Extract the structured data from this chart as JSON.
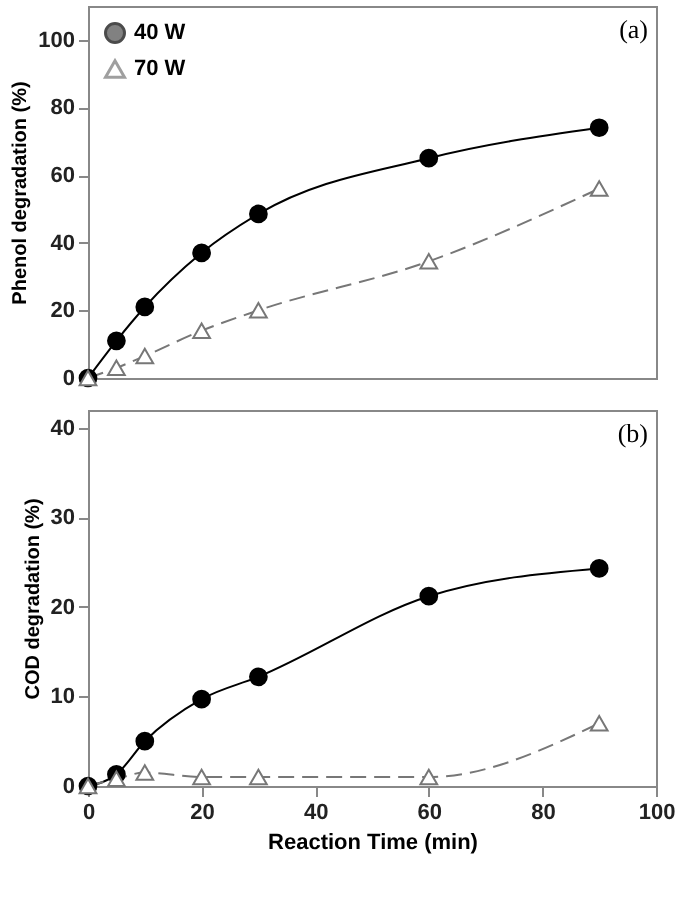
{
  "chart_data": [
    {
      "type": "line",
      "ylabel": "Phenol degradation (%)",
      "annotations": [
        "(a)"
      ],
      "xlim": [
        0,
        100
      ],
      "xticks": [
        0,
        20,
        40,
        60,
        80,
        100
      ],
      "ylim": [
        0,
        110
      ],
      "yticks": [
        0,
        20,
        40,
        60,
        80,
        100
      ],
      "tick_labels": "y",
      "legend": "top left",
      "x": [
        0,
        5,
        10,
        20,
        30,
        60,
        90
      ],
      "series": [
        {
          "name": "40 W",
          "color": "#000000",
          "marker": "circle",
          "line_style": "solid",
          "values": [
            0,
            11,
            21,
            37,
            48.5,
            65,
            74
          ]
        },
        {
          "name": "70 W",
          "color": "#777777",
          "marker": "triangle",
          "line_style": "dashed",
          "values": [
            0,
            3,
            6.5,
            14,
            20,
            34.5,
            56
          ]
        }
      ]
    },
    {
      "type": "line",
      "xlabel": "Reaction Time (min)",
      "ylabel": "COD degradation (%)",
      "annotations": [
        "(b)"
      ],
      "xlim": [
        0,
        100
      ],
      "xticks": [
        0,
        20,
        40,
        60,
        80,
        100
      ],
      "ylim": [
        0,
        42
      ],
      "yticks": [
        0,
        10,
        20,
        30,
        40
      ],
      "x": [
        0,
        5,
        10,
        20,
        30,
        60,
        90
      ],
      "series": [
        {
          "color": "#000000",
          "marker": "circle",
          "line_style": "solid",
          "values": [
            0,
            1.3,
            5,
            9.7,
            12.2,
            21.2,
            24.3
          ]
        },
        {
          "color": "#777777",
          "marker": "triangle",
          "line_style": "dashed",
          "values": [
            0,
            0.8,
            1.5,
            1,
            1,
            1,
            7
          ]
        }
      ]
    }
  ]
}
